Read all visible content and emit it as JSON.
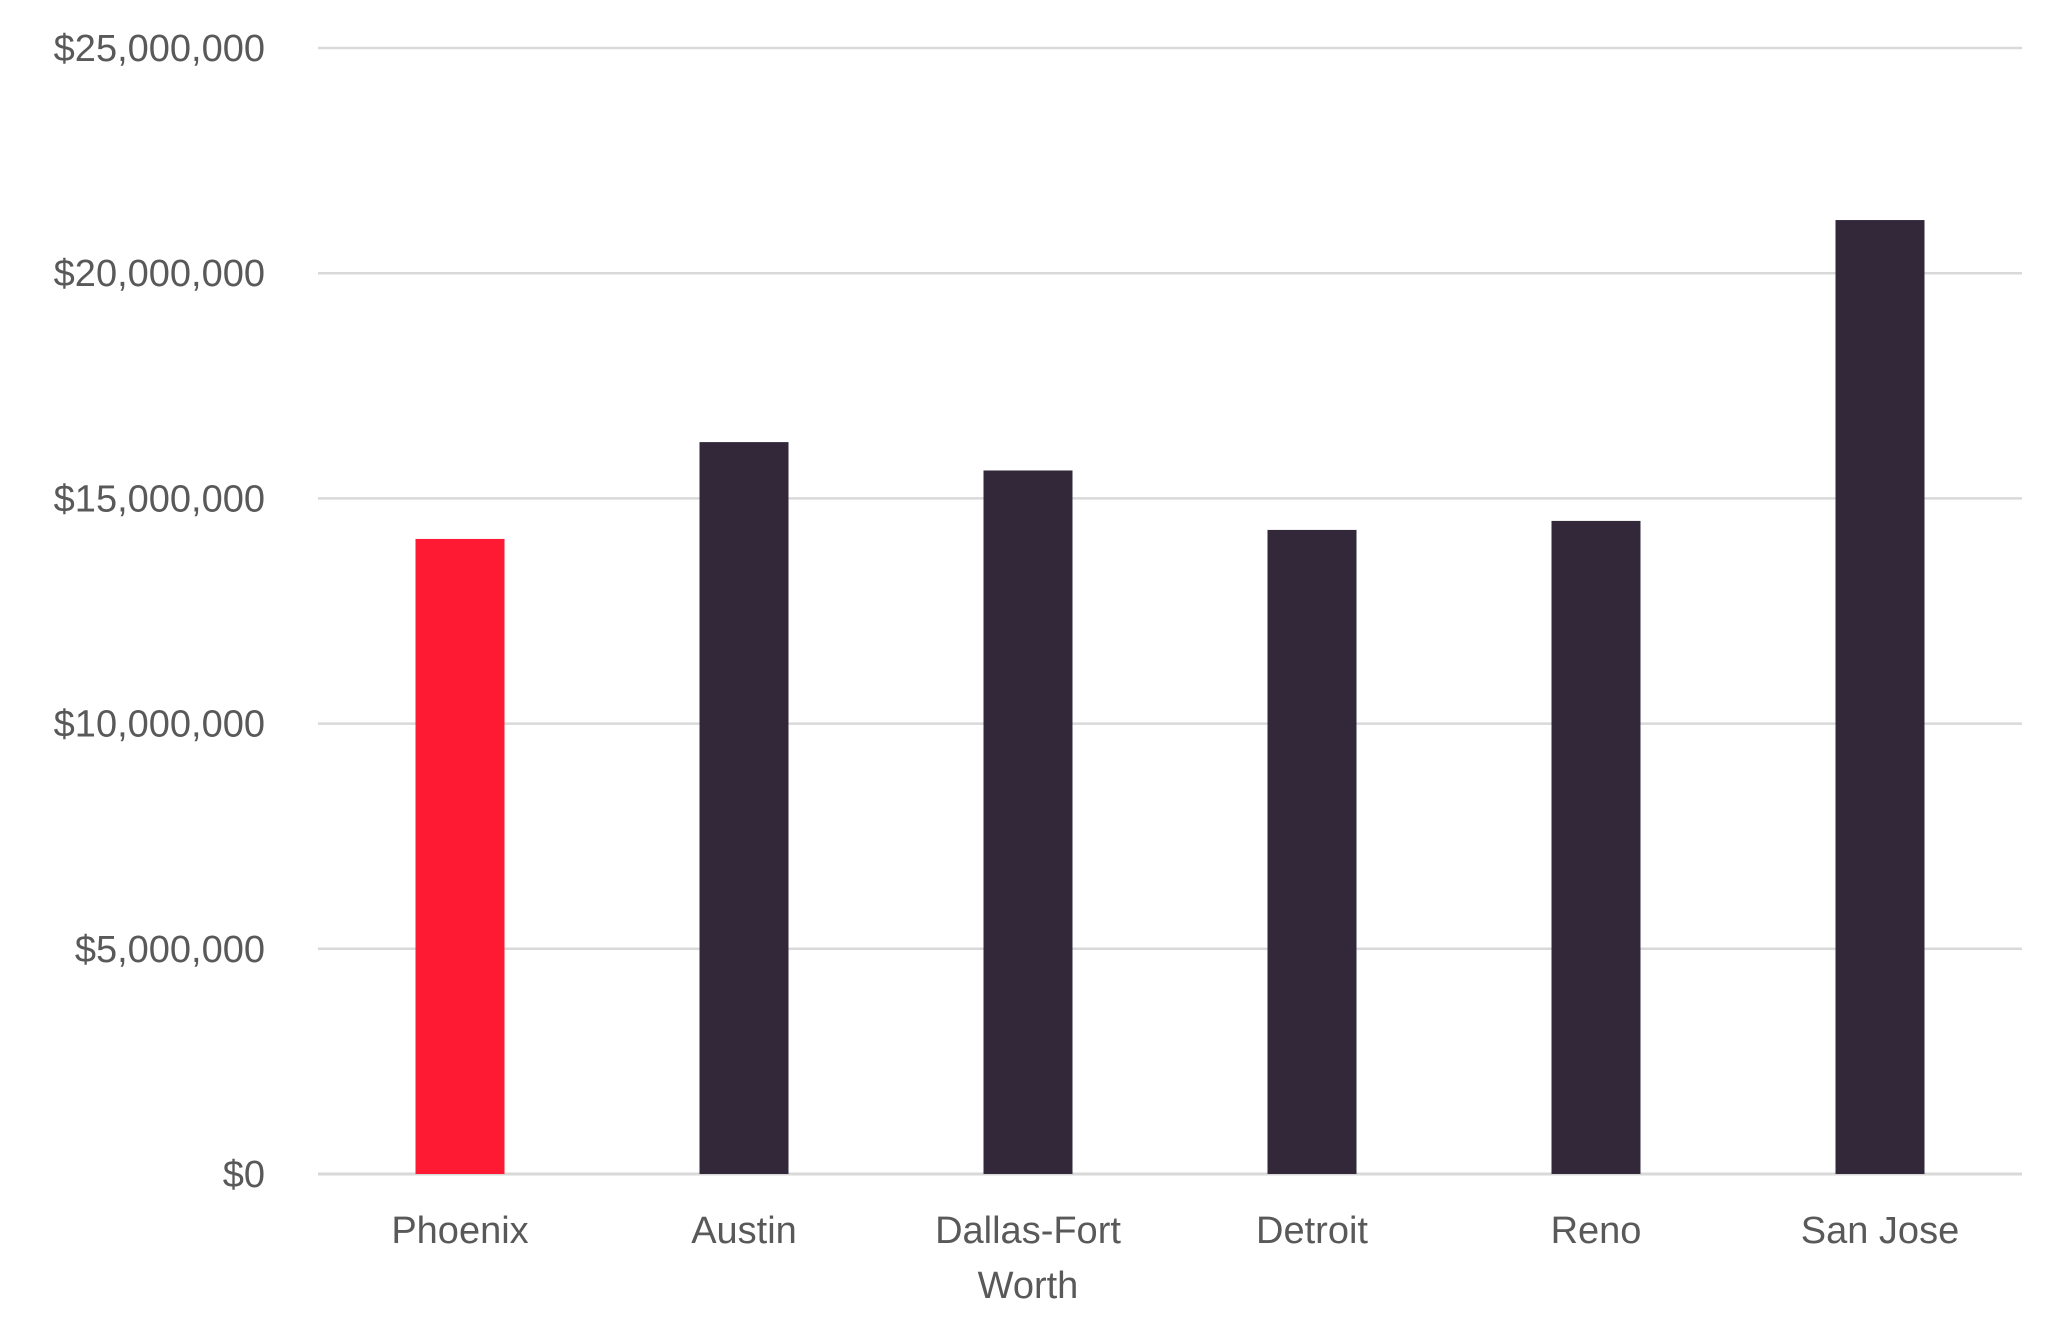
{
  "chart_data": {
    "type": "bar",
    "title": "",
    "xlabel": "",
    "ylabel": "",
    "categories": [
      [
        "Phoenix"
      ],
      [
        "Austin"
      ],
      [
        "Dallas-Fort",
        "Worth"
      ],
      [
        "Detroit"
      ],
      [
        "Reno"
      ],
      [
        "San Jose"
      ]
    ],
    "values": [
      14100000,
      16250000,
      15620000,
      14300000,
      14500000,
      21180000
    ],
    "colors": [
      "#ff1a33",
      "#32283a",
      "#32283a",
      "#32283a",
      "#32283a",
      "#32283a"
    ],
    "ylim": [
      0,
      25000000
    ],
    "yticks": [
      0,
      5000000,
      10000000,
      15000000,
      20000000,
      25000000
    ],
    "ytick_labels": [
      "$0",
      "$5,000,000",
      "$10,000,000",
      "$15,000,000",
      "$20,000,000",
      "$25,000,000"
    ],
    "grid": true,
    "legend": "none",
    "gridline_color": "#d9d9d9",
    "label_color": "#595959"
  }
}
